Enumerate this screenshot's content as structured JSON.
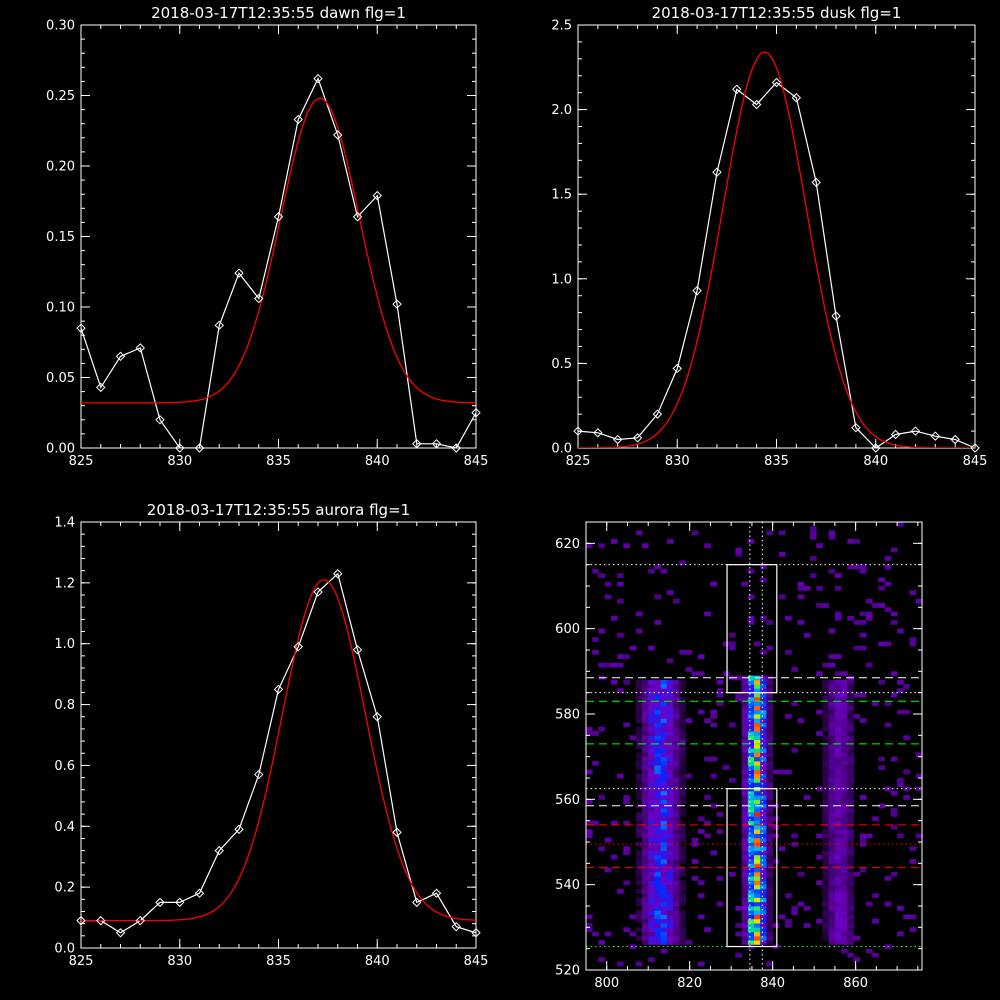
{
  "chart_data": [
    {
      "type": "line",
      "title": "2018-03-17T12:35:55 dawn flg=1",
      "xlim": [
        825,
        845
      ],
      "ylim": [
        0,
        0.3
      ],
      "xticks": [
        "825",
        "830",
        "835",
        "840",
        "845"
      ],
      "yticks": [
        "0.00",
        "0.05",
        "0.10",
        "0.15",
        "0.20",
        "0.25",
        "0.30"
      ],
      "series": [
        {
          "color": "#ffffff",
          "marker": "diamond",
          "x": [
            825,
            826,
            827,
            828,
            829,
            830,
            831,
            832,
            833,
            834,
            835,
            836,
            837,
            838,
            839,
            840,
            841,
            842,
            843,
            844,
            845
          ],
          "y": [
            0.085,
            0.043,
            0.065,
            0.071,
            0.02,
            0.0,
            0.0,
            0.087,
            0.124,
            0.106,
            0.164,
            0.233,
            0.262,
            0.222,
            0.164,
            0.179,
            0.102,
            0.003,
            0.003,
            0.0,
            0.025
          ]
        },
        {
          "color": "#ff0000",
          "fit": "gaussian",
          "params": {
            "base": 0.032,
            "amp": 0.216,
            "center": 837.1,
            "sigma": 2.0
          }
        }
      ]
    },
    {
      "type": "line",
      "title": "2018-03-17T12:35:55 dusk flg=1",
      "xlim": [
        825,
        845
      ],
      "ylim": [
        0,
        2.5
      ],
      "xticks": [
        "825",
        "830",
        "835",
        "840",
        "845"
      ],
      "yticks": [
        "0.0",
        "0.5",
        "1.0",
        "1.5",
        "2.0",
        "2.5"
      ],
      "series": [
        {
          "color": "#ffffff",
          "marker": "diamond",
          "x": [
            825,
            826,
            827,
            828,
            829,
            830,
            831,
            832,
            833,
            834,
            835,
            836,
            837,
            838,
            839,
            840,
            841,
            842,
            843,
            844,
            845
          ],
          "y": [
            0.1,
            0.09,
            0.05,
            0.06,
            0.2,
            0.47,
            0.93,
            1.63,
            2.12,
            2.03,
            2.16,
            2.07,
            1.57,
            0.78,
            0.12,
            0.0,
            0.08,
            0.1,
            0.07,
            0.05,
            0.0
          ]
        },
        {
          "color": "#ff0000",
          "fit": "gaussian",
          "params": {
            "base": 0.0,
            "amp": 2.34,
            "center": 834.4,
            "sigma": 2.1
          }
        }
      ]
    },
    {
      "type": "line",
      "title": "2018-03-17T12:35:55 aurora flg=1",
      "xlim": [
        825,
        845
      ],
      "ylim": [
        0,
        1.4
      ],
      "xticks": [
        "825",
        "830",
        "835",
        "840",
        "845"
      ],
      "yticks": [
        "0.0",
        "0.2",
        "0.4",
        "0.6",
        "0.8",
        "1.0",
        "1.2",
        "1.4"
      ],
      "series": [
        {
          "color": "#ffffff",
          "marker": "diamond",
          "x": [
            825,
            826,
            827,
            828,
            829,
            830,
            831,
            832,
            833,
            834,
            835,
            836,
            837,
            838,
            839,
            840,
            841,
            842,
            843,
            844,
            845
          ],
          "y": [
            0.09,
            0.09,
            0.05,
            0.09,
            0.15,
            0.15,
            0.18,
            0.32,
            0.39,
            0.57,
            0.85,
            0.99,
            1.17,
            1.23,
            0.98,
            0.76,
            0.38,
            0.15,
            0.18,
            0.07,
            0.05
          ]
        },
        {
          "color": "#ff0000",
          "fit": "gaussian",
          "params": {
            "base": 0.09,
            "amp": 1.12,
            "center": 837.3,
            "sigma": 2.1
          }
        }
      ]
    },
    {
      "type": "heatmap",
      "title": "",
      "xlim": [
        795,
        876
      ],
      "ylim": [
        520,
        625
      ],
      "xticks": [
        "800",
        "820",
        "840",
        "860"
      ],
      "yticks": [
        "520",
        "540",
        "560",
        "580",
        "600",
        "620"
      ],
      "columns": [
        {
          "center": 813,
          "width": 5,
          "y_range": [
            526,
            588
          ],
          "peak": 0.55
        },
        {
          "center": 836,
          "width": 3,
          "y_range": [
            526,
            589
          ],
          "peak": 1.0
        },
        {
          "center": 856,
          "width": 4,
          "y_range": [
            526,
            588
          ],
          "peak": 0.3
        }
      ],
      "boxes": [
        {
          "x": [
            829,
            841
          ],
          "y": [
            525.5,
            562.5
          ],
          "color": "#ffffff"
        },
        {
          "x": [
            829,
            841
          ],
          "y": [
            585,
            615
          ],
          "color": "#ffffff"
        }
      ],
      "vlines": [
        {
          "x": 834.5,
          "color": "#ffffff",
          "style": "dotted"
        },
        {
          "x": 837.5,
          "color": "#ffffff",
          "style": "dotted"
        }
      ],
      "hlines": [
        {
          "y": 615,
          "color": "#ffffff",
          "style": "dotted"
        },
        {
          "y": 588.5,
          "color": "#ffffff",
          "style": "dashed"
        },
        {
          "y": 585,
          "color": "#ffffff",
          "style": "dotted"
        },
        {
          "y": 583,
          "color": "#00ff00",
          "style": "dashed"
        },
        {
          "y": 573,
          "color": "#00ff00",
          "style": "dashed"
        },
        {
          "y": 562.5,
          "color": "#ffffff",
          "style": "dotted"
        },
        {
          "y": 558.5,
          "color": "#ffffff",
          "style": "dashed"
        },
        {
          "y": 554,
          "color": "#ff0000",
          "style": "dashed"
        },
        {
          "y": 549.5,
          "color": "#ff0000",
          "style": "dotted"
        },
        {
          "y": 544,
          "color": "#ff0000",
          "style": "dashed"
        },
        {
          "y": 525.5,
          "color": "#00ff00",
          "style": "dotted"
        }
      ]
    }
  ]
}
